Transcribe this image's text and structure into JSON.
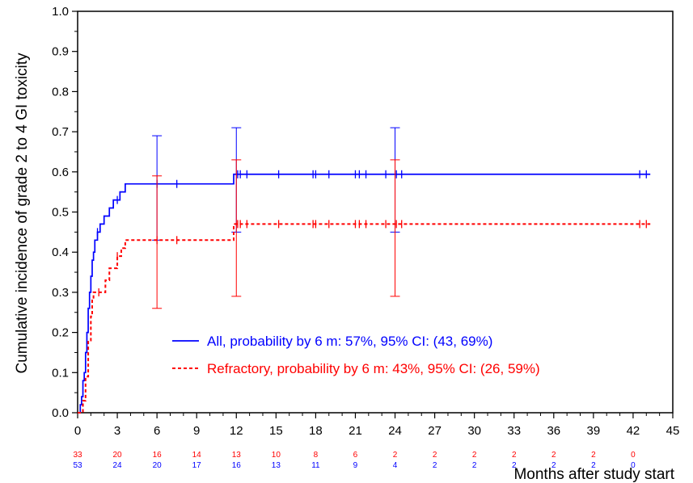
{
  "chart_data": {
    "type": "line",
    "subtype": "step",
    "ylabel": "Cumulative incidence of grade 2 to 4 GI toxicity",
    "xlabel": "Months after study start",
    "xlim": [
      0,
      45
    ],
    "ylim": [
      0,
      1.0
    ],
    "x_ticks": [
      "0",
      "3",
      "6",
      "9",
      "12",
      "15",
      "18",
      "21",
      "24",
      "27",
      "30",
      "33",
      "36",
      "39",
      "42",
      "45"
    ],
    "y_ticks": [
      "0.0",
      "0.1",
      "0.2",
      "0.3",
      "0.4",
      "0.5",
      "0.6",
      "0.7",
      "0.8",
      "0.9",
      "1.0"
    ],
    "legend_position": "lower-center",
    "series": [
      {
        "name": "All, probability by 6 m: 57%, 95% CI: (43, 69%)",
        "color": "#0000ff",
        "line_style": "solid",
        "points": [
          [
            0,
            0
          ],
          [
            0.2,
            0.02
          ],
          [
            0.3,
            0.04
          ],
          [
            0.4,
            0.08
          ],
          [
            0.5,
            0.1
          ],
          [
            0.6,
            0.15
          ],
          [
            0.7,
            0.2
          ],
          [
            0.8,
            0.26
          ],
          [
            0.9,
            0.3
          ],
          [
            1.0,
            0.34
          ],
          [
            1.1,
            0.38
          ],
          [
            1.2,
            0.4
          ],
          [
            1.3,
            0.43
          ],
          [
            1.5,
            0.45
          ],
          [
            1.7,
            0.47
          ],
          [
            2.0,
            0.49
          ],
          [
            2.4,
            0.51
          ],
          [
            2.7,
            0.53
          ],
          [
            3.2,
            0.55
          ],
          [
            3.6,
            0.57
          ],
          [
            11.8,
            0.57
          ],
          [
            11.8,
            0.594
          ],
          [
            43.3,
            0.594
          ]
        ],
        "censor_x": [
          1.5,
          3.0,
          6.0,
          7.5,
          12.1,
          12.3,
          12.8,
          15.2,
          17.8,
          18.0,
          19.0,
          21.0,
          21.3,
          21.8,
          23.3,
          24.1,
          24.5,
          42.5,
          43.0
        ],
        "ci": [
          {
            "x": 6,
            "lower": 0.43,
            "upper": 0.69
          },
          {
            "x": 12,
            "lower": 0.45,
            "upper": 0.71
          },
          {
            "x": 24,
            "lower": 0.45,
            "upper": 0.71
          }
        ]
      },
      {
        "name": "Refractory, probability by 6 m: 43%, 95% CI: (26, 59%)",
        "color": "#ff0000",
        "line_style": "dashed",
        "points": [
          [
            0,
            0
          ],
          [
            0.4,
            0.0
          ],
          [
            0.4,
            0.03
          ],
          [
            0.6,
            0.09
          ],
          [
            0.8,
            0.18
          ],
          [
            1.0,
            0.24
          ],
          [
            1.1,
            0.28
          ],
          [
            1.2,
            0.3
          ],
          [
            2.1,
            0.3
          ],
          [
            2.1,
            0.33
          ],
          [
            2.4,
            0.36
          ],
          [
            3.0,
            0.39
          ],
          [
            3.3,
            0.41
          ],
          [
            3.6,
            0.43
          ],
          [
            11.8,
            0.43
          ],
          [
            11.8,
            0.47
          ],
          [
            43.3,
            0.47
          ]
        ],
        "censor_x": [
          1.6,
          3.0,
          6.0,
          7.5,
          12.1,
          12.3,
          12.8,
          15.2,
          17.8,
          18.0,
          19.0,
          21.0,
          21.3,
          21.8,
          23.3,
          24.1,
          24.5,
          42.5,
          43.0
        ],
        "ci": [
          {
            "x": 6,
            "lower": 0.26,
            "upper": 0.59
          },
          {
            "x": 12,
            "lower": 0.29,
            "upper": 0.63
          },
          {
            "x": 24,
            "lower": 0.29,
            "upper": 0.63
          }
        ]
      }
    ],
    "number_at_risk": {
      "times": [
        0,
        3,
        6,
        9,
        12,
        15,
        18,
        21,
        24,
        27,
        30,
        33,
        36,
        39,
        42
      ],
      "rows": [
        {
          "color": "#ff0000",
          "values": [
            "33",
            "20",
            "16",
            "14",
            "13",
            "10",
            "8",
            "6",
            "2",
            "2",
            "2",
            "2",
            "2",
            "2",
            "0"
          ]
        },
        {
          "color": "#0000ff",
          "values": [
            "53",
            "24",
            "20",
            "17",
            "16",
            "13",
            "11",
            "9",
            "4",
            "2",
            "2",
            "2",
            "2",
            "2",
            "0"
          ]
        }
      ]
    }
  }
}
